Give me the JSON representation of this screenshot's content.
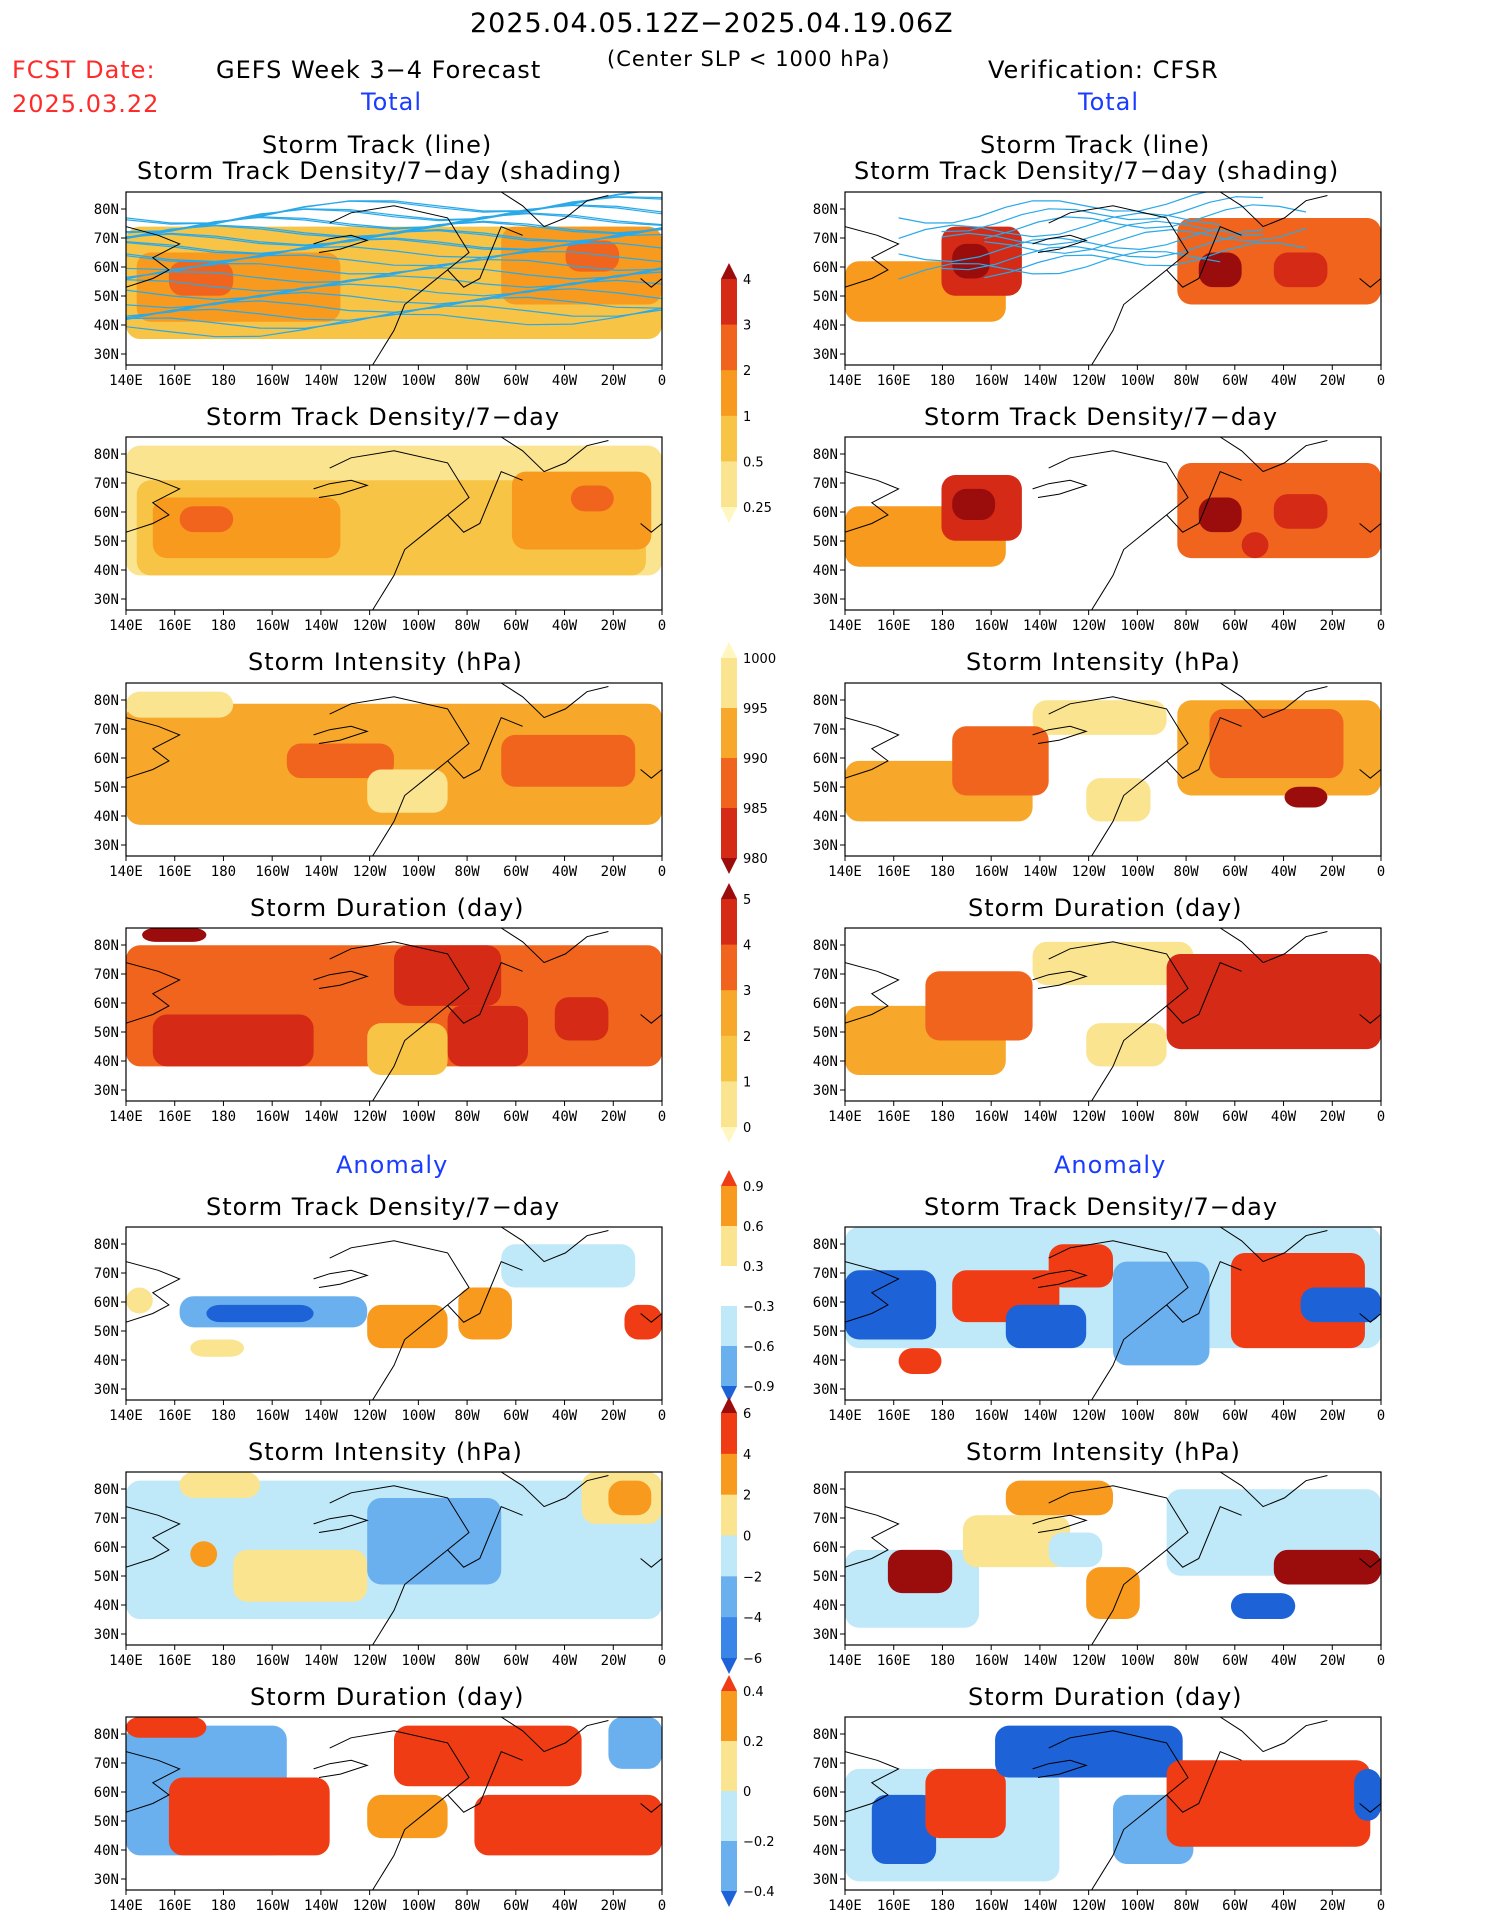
{
  "header": {
    "title": "2025.04.05.12Z−2025.04.19.06Z",
    "fcst_label": "FCST Date:",
    "fcst_date": "2025.03.22",
    "left_title": "GEFS Week 3−4 Forecast",
    "center_note": "(Center SLP < 1000 hPa)",
    "right_title": "Verification: CFSR"
  },
  "sections": {
    "total": "Total",
    "anomaly": "Anomaly"
  },
  "axes": {
    "lon_ticks": [
      "140E",
      "160E",
      "180",
      "160W",
      "140W",
      "120W",
      "100W",
      "80W",
      "60W",
      "40W",
      "20W",
      "0"
    ],
    "lat_ticks": [
      "80N",
      "70N",
      "60N",
      "50N",
      "40N",
      "30N"
    ]
  },
  "panels": [
    {
      "id": "fc-track",
      "title1": "Storm Track (line)",
      "title2": "Storm Track Density/7−day (shading)"
    },
    {
      "id": "vf-track",
      "title1": "Storm Track (line)",
      "title2": "Storm Track Density/7−day (shading)"
    },
    {
      "id": "fc-density",
      "title1": "Storm Track Density/7−day"
    },
    {
      "id": "vf-density",
      "title1": "Storm Track Density/7−day"
    },
    {
      "id": "fc-intensity",
      "title1": "Storm Intensity (hPa)"
    },
    {
      "id": "vf-intensity",
      "title1": "Storm Intensity (hPa)"
    },
    {
      "id": "fc-duration",
      "title1": "Storm Duration (day)"
    },
    {
      "id": "vf-duration",
      "title1": "Storm Duration (day)"
    },
    {
      "id": "fc-density-anom",
      "title1": "Storm Track Density/7−day"
    },
    {
      "id": "vf-density-anom",
      "title1": "Storm Track Density/7−day"
    },
    {
      "id": "fc-intensity-anom",
      "title1": "Storm Intensity (hPa)"
    },
    {
      "id": "vf-intensity-anom",
      "title1": "Storm Intensity (hPa)"
    },
    {
      "id": "fc-duration-anom",
      "title1": "Storm Duration (day)"
    },
    {
      "id": "vf-duration-anom",
      "title1": "Storm Duration (day)"
    }
  ],
  "colorbars": {
    "density": {
      "labels": [
        "4",
        "3",
        "2",
        "1",
        "0.5",
        "0.25"
      ],
      "colors": [
        "#9b0c0c",
        "#d42a16",
        "#f0641e",
        "#f79a1e",
        "#f7c446",
        "#fbe490",
        "#fff6c0"
      ]
    },
    "intensity": {
      "labels": [
        "1000",
        "995",
        "990",
        "985",
        "980"
      ],
      "colors": [
        "#fff6c0",
        "#fbe490",
        "#f7a82a",
        "#f0641e",
        "#d42a16",
        "#9b0c0c"
      ]
    },
    "duration": {
      "labels": [
        "5",
        "4",
        "3",
        "2",
        "1",
        "0"
      ],
      "colors": [
        "#9b0c0c",
        "#d42a16",
        "#f0641e",
        "#f7a82a",
        "#f7c446",
        "#fbe490",
        "#fff6c0"
      ]
    },
    "density_anom": {
      "labels": [
        "0.9",
        "0.6",
        "0.3",
        "−0.3",
        "−0.6",
        "−0.9"
      ],
      "colors": [
        "#f03c14",
        "#f79a1e",
        "#fbe490",
        "#ffffff",
        "#bfe8f8",
        "#6ab0ef",
        "#1e62d8"
      ]
    },
    "intensity_anom": {
      "labels": [
        "6",
        "4",
        "2",
        "0",
        "−2",
        "−4",
        "−6"
      ],
      "colors": [
        "#9b0c0c",
        "#f03c14",
        "#f79a1e",
        "#fbe490",
        "#bfe8f8",
        "#6ab0ef",
        "#3a86e8",
        "#1e62d8"
      ]
    },
    "duration_anom": {
      "labels": [
        "0.4",
        "0.2",
        "0",
        "−0.2",
        "−0.4"
      ],
      "colors": [
        "#f03c14",
        "#f79a1e",
        "#fbe490",
        "#bfe8f8",
        "#6ab0ef",
        "#1e62d8"
      ]
    }
  },
  "palette": {
    "ocean_line": "#000000",
    "track_line": "#2aa9e8"
  }
}
